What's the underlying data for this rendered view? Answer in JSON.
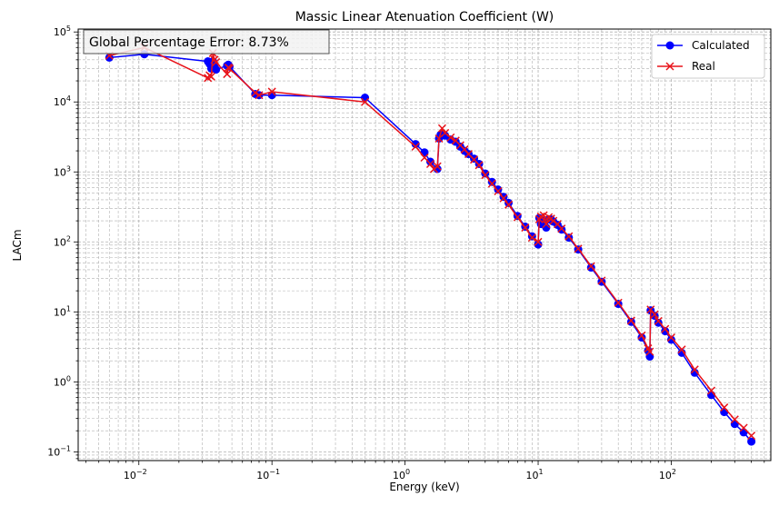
{
  "chart_data": {
    "type": "line",
    "title": "Massic Linear Atenuation Coefficient (W)",
    "xlabel": "Energy (keV)",
    "ylabel": "LACm",
    "xscale": "log",
    "yscale": "log",
    "xlim": [
      0.0035,
      560
    ],
    "ylim": [
      0.075,
      110000
    ],
    "grid": "both-major-minor-dashed",
    "legend_position": "top-right",
    "annotation": "Global Percentage Error: 8.73%",
    "x_ticks": [
      {
        "value": 0.01,
        "base": "10",
        "exp": "−2"
      },
      {
        "value": 0.1,
        "base": "10",
        "exp": "−1"
      },
      {
        "value": 1,
        "base": "10",
        "exp": "0"
      },
      {
        "value": 10,
        "base": "10",
        "exp": "1"
      },
      {
        "value": 100,
        "base": "10",
        "exp": "2"
      }
    ],
    "y_ticks": [
      {
        "value": 0.1,
        "base": "10",
        "exp": "−1"
      },
      {
        "value": 1,
        "base": "10",
        "exp": "0"
      },
      {
        "value": 10,
        "base": "10",
        "exp": "1"
      },
      {
        "value": 100,
        "base": "10",
        "exp": "2"
      },
      {
        "value": 1000,
        "base": "10",
        "exp": "3"
      },
      {
        "value": 10000,
        "base": "10",
        "exp": "4"
      },
      {
        "value": 100000,
        "base": "10",
        "exp": "5"
      }
    ],
    "series": [
      {
        "name": "Calculated",
        "color": "#0000ff",
        "marker": "circle",
        "x": [
          0.006,
          0.011,
          0.033,
          0.034,
          0.035,
          0.036,
          0.037,
          0.038,
          0.046,
          0.047,
          0.048,
          0.075,
          0.08,
          0.1,
          0.5,
          1.2,
          1.4,
          1.55,
          1.75,
          1.8,
          1.85,
          1.9,
          2.0,
          2.2,
          2.4,
          2.6,
          2.8,
          3.0,
          3.3,
          3.6,
          4.0,
          4.5,
          5.0,
          5.5,
          6.0,
          7.0,
          8.0,
          9.0,
          10.0,
          10.2,
          10.5,
          11.0,
          11.5,
          12.0,
          12.5,
          13.0,
          14.0,
          15.0,
          17.0,
          20.0,
          25.0,
          30.0,
          40.0,
          50.0,
          60.0,
          67.0,
          69.0,
          70.0,
          75.0,
          80.0,
          90.0,
          100.0,
          120.0,
          150.0,
          200.0,
          250.0,
          300.0,
          350.0,
          400.0
        ],
        "y": [
          43000,
          48000,
          38000,
          35000,
          30000,
          38000,
          34000,
          29000,
          33000,
          34000,
          32000,
          13000,
          12500,
          12500,
          11500,
          2500,
          1900,
          1400,
          1100,
          3000,
          3400,
          3500,
          3300,
          2900,
          2700,
          2300,
          2000,
          1800,
          1550,
          1300,
          950,
          720,
          560,
          440,
          360,
          235,
          165,
          120,
          92,
          220,
          180,
          200,
          160,
          210,
          210,
          195,
          175,
          150,
          115,
          78,
          43,
          27,
          13,
          7.2,
          4.3,
          2.8,
          2.3,
          10.5,
          8.8,
          7.0,
          5.3,
          4.0,
          2.6,
          1.35,
          0.65,
          0.37,
          0.25,
          0.19,
          0.14
        ]
      },
      {
        "name": "Real",
        "color": "#e8131a",
        "marker": "x",
        "x": [
          0.006,
          0.011,
          0.033,
          0.034,
          0.035,
          0.036,
          0.037,
          0.038,
          0.046,
          0.047,
          0.048,
          0.075,
          0.08,
          0.1,
          0.5,
          1.2,
          1.4,
          1.55,
          1.65,
          1.75,
          1.8,
          1.9,
          2.0,
          2.2,
          2.4,
          2.6,
          2.8,
          3.0,
          3.3,
          3.6,
          4.0,
          4.5,
          5.0,
          5.5,
          6.0,
          7.0,
          8.0,
          9.0,
          10.0,
          10.2,
          10.5,
          11.0,
          11.5,
          12.0,
          12.5,
          13.0,
          14.0,
          15.0,
          17.0,
          20.0,
          25.0,
          30.0,
          40.0,
          50.0,
          60.0,
          67.0,
          69.0,
          70.0,
          75.0,
          80.0,
          90.0,
          100.0,
          120.0,
          150.0,
          200.0,
          250.0,
          300.0,
          350.0,
          400.0
        ],
        "y": [
          46000,
          60000,
          22000,
          24000,
          23000,
          50000,
          40000,
          37000,
          25000,
          31000,
          30000,
          13500,
          12500,
          14000,
          10000,
          2300,
          1600,
          1300,
          1100,
          1200,
          3000,
          4200,
          3600,
          3100,
          2800,
          2400,
          2100,
          1800,
          1500,
          1250,
          900,
          680,
          530,
          420,
          340,
          225,
          160,
          115,
          100,
          210,
          230,
          240,
          180,
          225,
          215,
          200,
          180,
          155,
          120,
          80,
          45,
          28,
          13.5,
          7.5,
          4.6,
          3.0,
          2.7,
          10.8,
          9.2,
          7.4,
          5.7,
          4.3,
          2.9,
          1.5,
          0.75,
          0.43,
          0.29,
          0.22,
          0.17
        ]
      }
    ]
  }
}
